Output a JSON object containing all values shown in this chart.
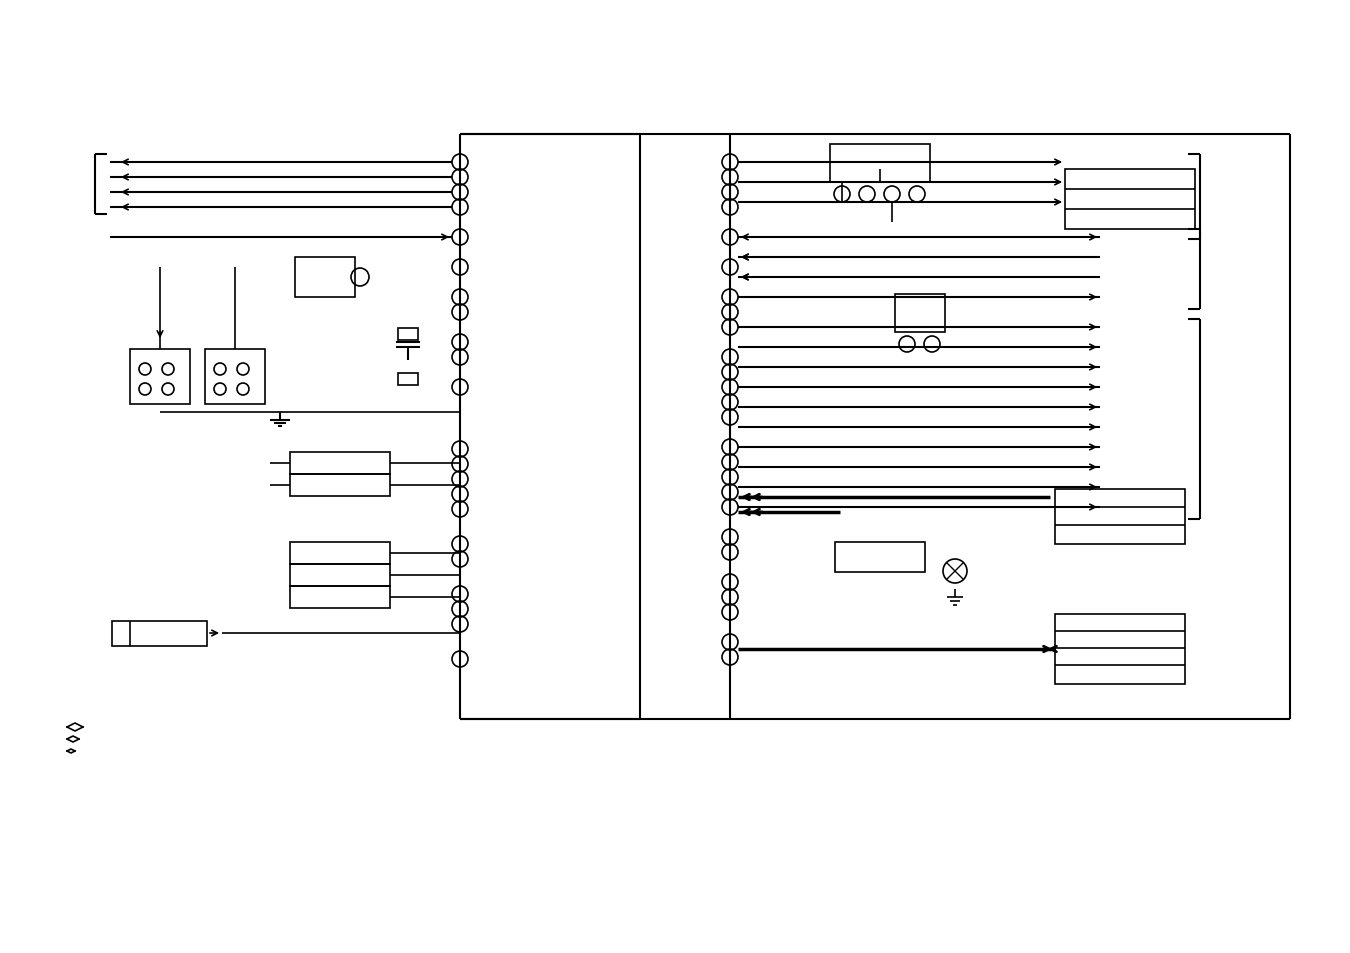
{
  "bg_color": "#ffffff",
  "line_color": "#000000",
  "fig_width": 13.5,
  "fig_height": 9.54,
  "dpi": 100
}
